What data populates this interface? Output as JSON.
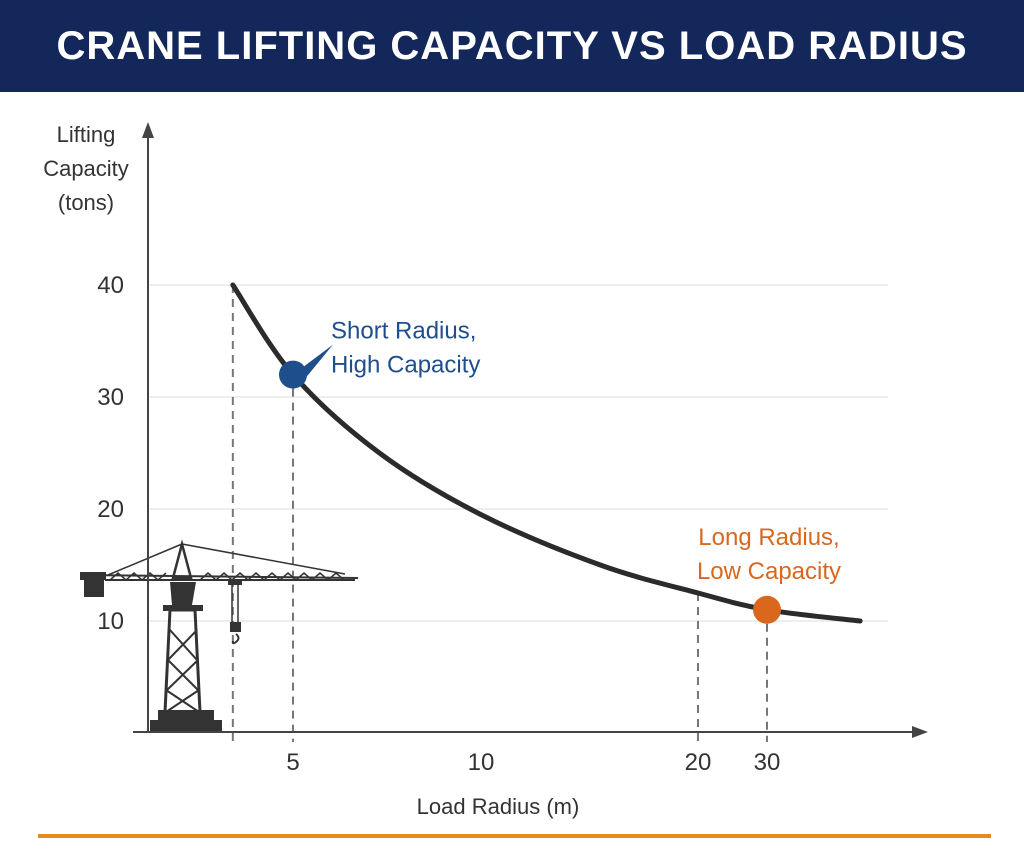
{
  "chart_data": {
    "type": "line",
    "title": "CRANE LIFTING CAPACITY VS LOAD RADIUS",
    "xlabel": "Load Radius (m)",
    "ylabel": [
      "Lifting",
      "Capacity",
      "(tons)"
    ],
    "x_ticks": [
      5,
      10,
      20,
      30
    ],
    "y_ticks": [
      10,
      20,
      30,
      40
    ],
    "x_scale": "non-uniform",
    "grid": "horizontal",
    "series": [
      {
        "x": [
          3.4,
          5,
          7.3,
          10,
          15.5,
          20,
          30,
          43.5
        ],
        "y": [
          40,
          32,
          25,
          19.5,
          15,
          12.5,
          11,
          10
        ],
        "color": "#2b2b2b"
      }
    ],
    "annotations": [
      {
        "text": [
          "Short Radius,",
          "High Capacity"
        ],
        "x": 5,
        "y": 32,
        "color": "#1f4e8c"
      },
      {
        "text": [
          "Long Radius,",
          "Low Capacity"
        ],
        "x": 30,
        "y": 11,
        "color": "#d9681e"
      }
    ],
    "reference_lines_x": [
      3.4,
      5,
      20,
      30
    ]
  },
  "colors": {
    "header": "#13275a",
    "accent": "#e58a1f",
    "blue": "#1f4e8c",
    "orange": "#d9681e"
  },
  "decoration": "tower-crane-icon"
}
